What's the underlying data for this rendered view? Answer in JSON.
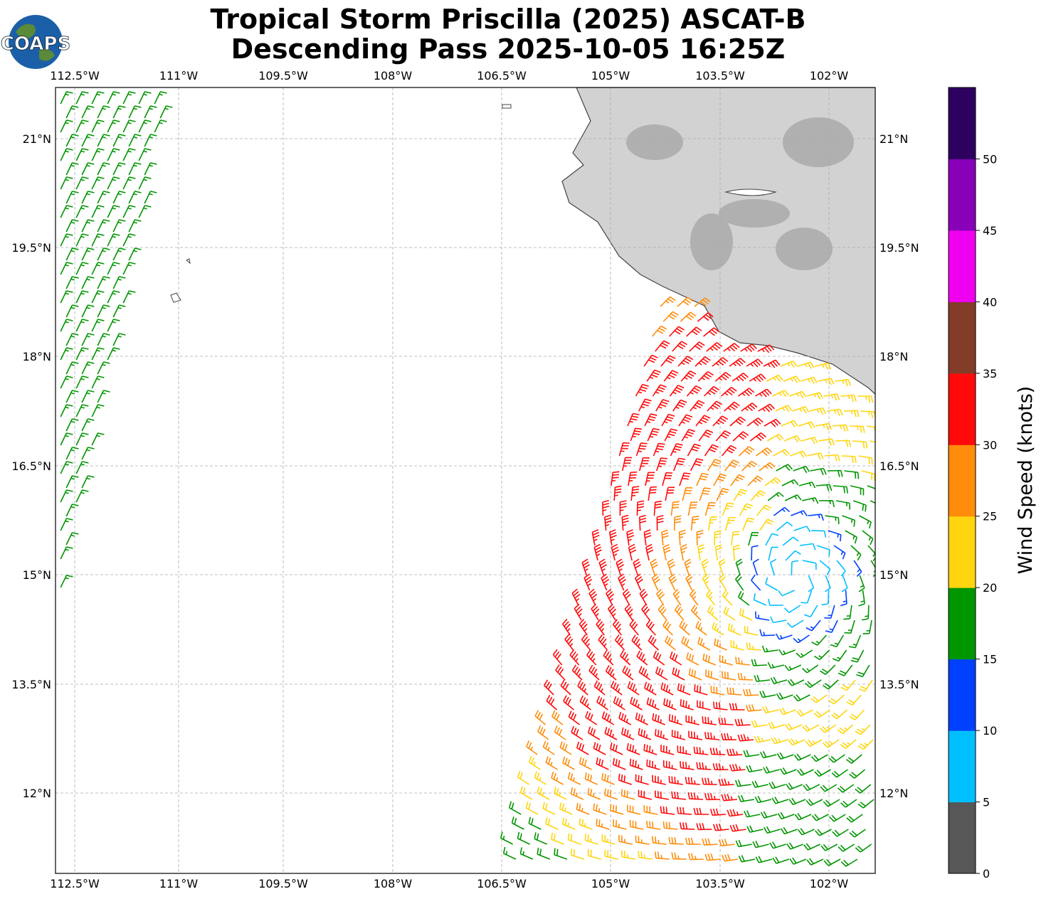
{
  "title": {
    "line1": "Tropical Storm Priscilla (2025) ASCAT-B",
    "line2": "Descending Pass 2025-10-05 16:25Z"
  },
  "logo": {
    "text": "COAPS"
  },
  "map": {
    "lon_ticks": [
      "112.5°W",
      "111°W",
      "109.5°W",
      "108°W",
      "106.5°W",
      "105°W",
      "103.5°W",
      "102°W"
    ],
    "lat_ticks": [
      "21°N",
      "19.5°N",
      "18°N",
      "16.5°N",
      "15°N",
      "13.5°N",
      "12°N"
    ],
    "land_color": "#cfcfcf"
  },
  "colorbar": {
    "label": "Wind Speed (knots)",
    "tick_labels": [
      "0",
      "5",
      "10",
      "15",
      "20",
      "25",
      "30",
      "35",
      "40",
      "45",
      "50"
    ],
    "colors": [
      "#575757",
      "#00bfff",
      "#0040ff",
      "#009600",
      "#ffd50f",
      "#ff8c0a",
      "#ff0a0a",
      "#823c28",
      "#f000f0",
      "#8800b8",
      "#2e0060"
    ]
  }
}
